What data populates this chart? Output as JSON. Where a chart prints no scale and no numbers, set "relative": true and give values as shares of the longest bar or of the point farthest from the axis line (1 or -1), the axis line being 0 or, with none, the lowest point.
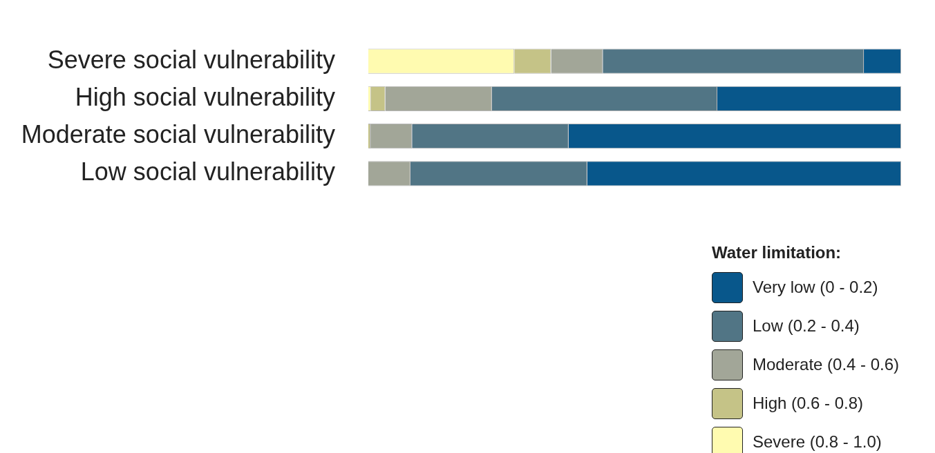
{
  "chart_data": {
    "type": "bar",
    "orientation": "horizontal",
    "stacked": true,
    "relative": true,
    "legend": "bottom right",
    "legend_title": "Water limitation:",
    "categories": [
      "Severe social vulnerability",
      "High social vulnerability",
      "Moderate social vulnerability",
      "Low social vulnerability"
    ],
    "series": [
      {
        "name": "Severe (0.8 - 1.0)",
        "color": "#fffbb0",
        "values": [
          0.274,
          0.005,
          0,
          0
        ]
      },
      {
        "name": "High (0.6 - 0.8)",
        "color": "#c5c387",
        "values": [
          0.069,
          0.027,
          0.004,
          0
        ]
      },
      {
        "name": "Moderate (0.4 - 0.6)",
        "color": "#a2a698",
        "values": [
          0.097,
          0.2,
          0.078,
          0.079
        ]
      },
      {
        "name": "Low (0.2 - 0.4)",
        "color": "#517585",
        "values": [
          0.49,
          0.423,
          0.294,
          0.332
        ]
      },
      {
        "name": "Very low (0 - 0.2)",
        "color": "#08578b",
        "values": [
          0.07,
          0.345,
          0.624,
          0.589
        ]
      }
    ]
  }
}
